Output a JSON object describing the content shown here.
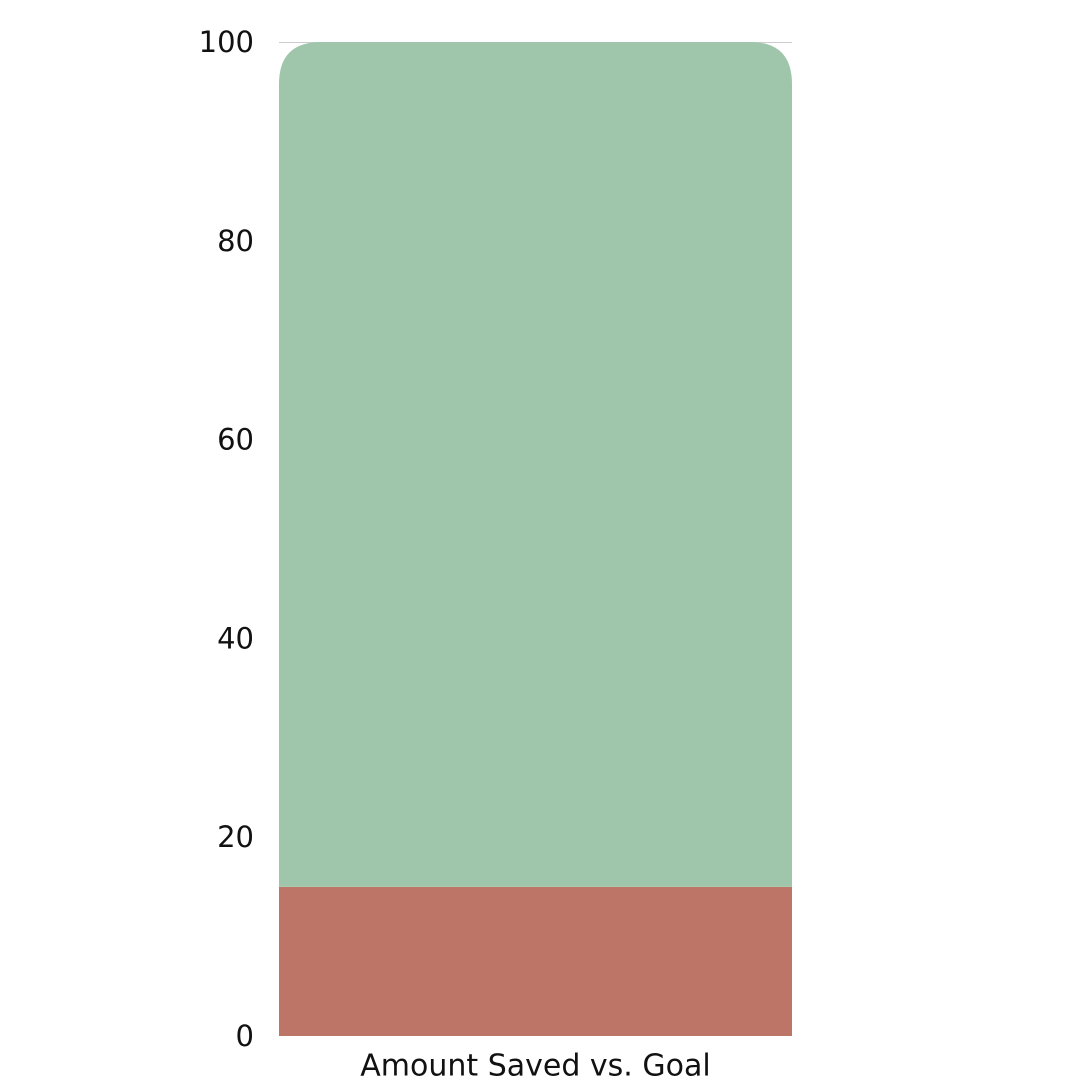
{
  "chart_data": {
    "type": "bar",
    "stacked": true,
    "categories": [
      "Amount Saved vs. Goal"
    ],
    "series": [
      {
        "values": [
          15
        ],
        "color": "#bd7567"
      },
      {
        "values": [
          85
        ],
        "color": "#9fc6aa"
      }
    ],
    "ylim": [
      0,
      100
    ],
    "yticks": [
      "0",
      "20",
      "40",
      "60",
      "80",
      "100"
    ],
    "grid": false
  }
}
